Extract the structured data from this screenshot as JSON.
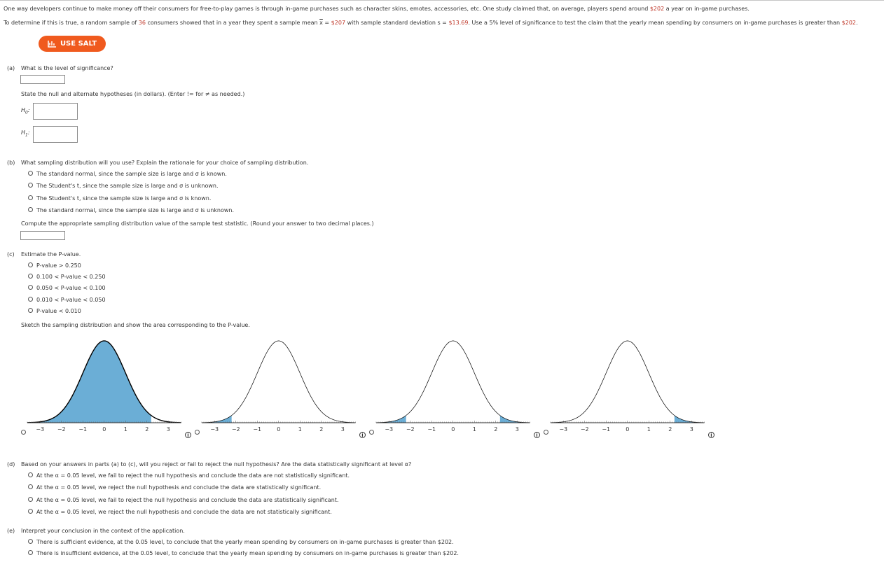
{
  "intro": {
    "line1_a": "One way developers continue to make money off their consumers for free-to-play games is through in-game purchases such as character skins, emotes, accessories, etc. One study claimed that, on average, players spend around ",
    "claimed_mean": "$202",
    "line1_b": " a year on in-game purchases.",
    "line2_a": "To determine if this is true, a random sample of ",
    "n": "36",
    "line2_b": " consumers showed that in a year they spent a sample mean ",
    "xbar_symbol": "x",
    "line2_c": " = ",
    "xbar": "$207",
    "line2_d": " with sample standard deviation s = ",
    "s": "$13.69",
    "line2_e": ". Use a 5% level of significance to test the claim that the yearly mean spending by consumers on in-game purchases is greater than ",
    "claim_value": "$202",
    "line2_f": "."
  },
  "salt_button": {
    "label": "USE SALT",
    "icon": "salt-chart-icon",
    "color": "#f05a1e"
  },
  "part_a": {
    "label": "(a)",
    "question": "What is the level of significance?",
    "hypotheses_prompt": "State the null and alternate hypotheses (in dollars). (Enter != for ≠ as needed.)",
    "h0": "H",
    "h0_sub": "0",
    "h1": "H",
    "h1_sub": "1"
  },
  "part_b": {
    "label": "(b)",
    "question": "What sampling distribution will you use? Explain the rationale for your choice of sampling distribution.",
    "options": [
      "The standard normal, since the sample size is large and σ is known.",
      "The Student's t, since the sample size is large and σ is unknown.",
      "The Student's t, since the sample size is large and σ is known.",
      "The standard normal, since the sample size is large and σ is unknown."
    ],
    "compute_prompt": "Compute the appropriate sampling distribution value of the sample test statistic. (Round your answer to two decimal places.)"
  },
  "part_c": {
    "label": "(c)",
    "question": "Estimate the P-value.",
    "options": [
      "P-value > 0.250",
      "0.100 < P-value < 0.250",
      "0.050 < P-value < 0.100",
      "0.010 < P-value < 0.050",
      "P-value < 0.010"
    ],
    "sketch_prompt": "Sketch the sampling distribution and show the area corresponding to the P-value.",
    "tick_labels": [
      "−3",
      "−2",
      "−1",
      "0",
      "1",
      "2",
      "3"
    ],
    "shade_color": "#6baed6",
    "graphs": [
      {
        "shade": "left-large"
      },
      {
        "shade": "left-tail"
      },
      {
        "shade": "two-tail"
      },
      {
        "shade": "right-tail"
      }
    ]
  },
  "part_d": {
    "label": "(d)",
    "question": "Based on your answers in parts (a) to (c), will you reject or fail to reject the null hypothesis? Are the data statistically significant at level α?",
    "options": [
      "At the α = 0.05 level, we fail to reject the null hypothesis and conclude the data are not statistically significant.",
      "At the α = 0.05 level, we reject the null hypothesis and conclude the data are statistically significant.",
      "At the α = 0.05 level, we fail to reject the null hypothesis and conclude the data are statistically significant.",
      "At the α = 0.05 level, we reject the null hypothesis and conclude the data are not statistically significant."
    ]
  },
  "part_e": {
    "label": "(e)",
    "question": "Interpret your conclusion in the context of the application.",
    "options": [
      "There is sufficient evidence, at the 0.05 level, to conclude that the yearly mean spending by consumers on in-game purchases is greater than $202.",
      "There is insufficient evidence, at the 0.05 level, to conclude that the yearly mean spending by consumers on in-game purchases is greater than $202."
    ]
  },
  "info_icon_glyph": "i"
}
